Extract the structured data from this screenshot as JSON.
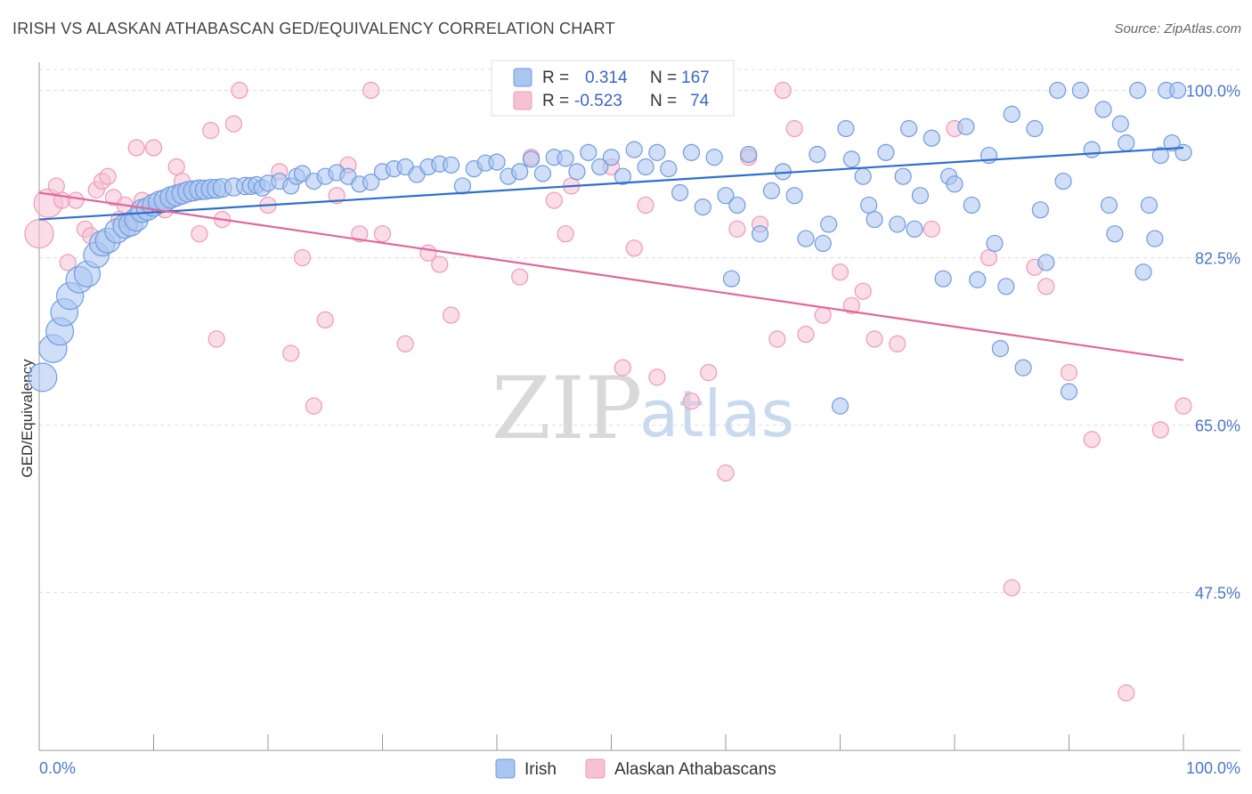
{
  "title": "IRISH VS ALASKAN ATHABASCAN GED/EQUIVALENCY CORRELATION CHART",
  "source": "Source: ZipAtlas.com",
  "watermark": {
    "zip": "ZIP",
    "atlas": "atlas"
  },
  "legend": {
    "series": [
      {
        "r_label": "R =",
        "r_value": "0.314",
        "n_label": "N =",
        "n_value": "167"
      },
      {
        "r_label": "R =",
        "r_value": "-0.523",
        "n_label": "N =",
        "n_value": "74"
      }
    ]
  },
  "bottom_legend": [
    "Irish",
    "Alaskan Athabascans"
  ],
  "colors": {
    "irish_fill": "#a9c5f0",
    "irish_stroke": "#6f9be0",
    "irish_line": "#2f6fcf",
    "alaskan_fill": "#f6c1d3",
    "alaskan_stroke": "#ee99b6",
    "alaskan_line": "#e2679a",
    "tick_label": "#4a78c8",
    "grid": "#dddddd"
  },
  "chart_data": {
    "type": "scatter",
    "title": "IRISH VS ALASKAN ATHABASCAN GED/EQUIVALENCY CORRELATION CHART",
    "xlabel": "",
    "ylabel": "GED/Equivalency",
    "xlim": [
      0,
      100
    ],
    "ylim": [
      31,
      102
    ],
    "x_tick_labels": [
      "0.0%",
      "100.0%"
    ],
    "y_ticks": [
      100.0,
      82.5,
      65.0,
      47.5
    ],
    "y_tick_labels": [
      "100.0%",
      "82.5%",
      "65.0%",
      "47.5%"
    ],
    "grid": "horizontal dashed",
    "legend_placement": "top-center",
    "series": [
      {
        "name": "Irish",
        "r": 0.314,
        "n": 167,
        "trend": [
          [
            0,
            86.5
          ],
          [
            100,
            94.0
          ]
        ],
        "points": [
          [
            0.3,
            70.0
          ],
          [
            1.2,
            73.0
          ],
          [
            1.8,
            74.8
          ],
          [
            2.2,
            76.8
          ],
          [
            2.7,
            78.5
          ],
          [
            3.5,
            80.2
          ],
          [
            4.2,
            80.8
          ],
          [
            5.0,
            82.8
          ],
          [
            5.5,
            84.0
          ],
          [
            6.0,
            84.3
          ],
          [
            6.8,
            85.3
          ],
          [
            7.5,
            85.8
          ],
          [
            8.0,
            86.0
          ],
          [
            8.5,
            86.5
          ],
          [
            9.0,
            87.4
          ],
          [
            9.5,
            87.6
          ],
          [
            10.0,
            88.0
          ],
          [
            10.5,
            88.3
          ],
          [
            11.0,
            88.5
          ],
          [
            11.5,
            88.8
          ],
          [
            12.0,
            89.0
          ],
          [
            12.5,
            89.2
          ],
          [
            13.0,
            89.4
          ],
          [
            13.5,
            89.5
          ],
          [
            14.0,
            89.6
          ],
          [
            14.5,
            89.6
          ],
          [
            15.0,
            89.7
          ],
          [
            15.5,
            89.7
          ],
          [
            16.0,
            89.8
          ],
          [
            17.0,
            89.9
          ],
          [
            18.0,
            90.0
          ],
          [
            18.5,
            90.0
          ],
          [
            19.0,
            90.1
          ],
          [
            19.5,
            89.8
          ],
          [
            20.0,
            90.3
          ],
          [
            21.0,
            90.5
          ],
          [
            22.0,
            90.0
          ],
          [
            22.5,
            91.0
          ],
          [
            23.0,
            91.3
          ],
          [
            24.0,
            90.5
          ],
          [
            25.0,
            91.0
          ],
          [
            26.0,
            91.4
          ],
          [
            27.0,
            91.0
          ],
          [
            28.0,
            90.2
          ],
          [
            29.0,
            90.4
          ],
          [
            30.0,
            91.5
          ],
          [
            31.0,
            91.8
          ],
          [
            32.0,
            92.0
          ],
          [
            33.0,
            91.2
          ],
          [
            34.0,
            92.0
          ],
          [
            35.0,
            92.3
          ],
          [
            36.0,
            92.2
          ],
          [
            37.0,
            90.0
          ],
          [
            38.0,
            91.8
          ],
          [
            39.0,
            92.4
          ],
          [
            40.0,
            92.5
          ],
          [
            41.0,
            91.0
          ],
          [
            42.0,
            91.5
          ],
          [
            43.0,
            92.8
          ],
          [
            44.0,
            91.3
          ],
          [
            45.0,
            93.0
          ],
          [
            46.0,
            92.9
          ],
          [
            47.0,
            91.5
          ],
          [
            48.0,
            93.5
          ],
          [
            49.0,
            92.0
          ],
          [
            50.0,
            93.0
          ],
          [
            51.0,
            91.0
          ],
          [
            52.0,
            93.8
          ],
          [
            53.0,
            92.0
          ],
          [
            54.0,
            93.5
          ],
          [
            55.0,
            91.8
          ],
          [
            56.0,
            89.3
          ],
          [
            57.0,
            93.5
          ],
          [
            58.0,
            87.8
          ],
          [
            59.0,
            93.0
          ],
          [
            60.0,
            89.0
          ],
          [
            60.5,
            80.3
          ],
          [
            61.0,
            88.0
          ],
          [
            62.0,
            93.3
          ],
          [
            63.0,
            85.0
          ],
          [
            64.0,
            89.5
          ],
          [
            65.0,
            91.5
          ],
          [
            66.0,
            89.0
          ],
          [
            67.0,
            84.5
          ],
          [
            68.0,
            93.3
          ],
          [
            68.5,
            84.0
          ],
          [
            69.0,
            86.0
          ],
          [
            70.0,
            67.0
          ],
          [
            70.5,
            96.0
          ],
          [
            71.0,
            92.8
          ],
          [
            72.0,
            91.0
          ],
          [
            72.5,
            88.0
          ],
          [
            73.0,
            86.5
          ],
          [
            74.0,
            93.5
          ],
          [
            75.0,
            86.0
          ],
          [
            75.5,
            91.0
          ],
          [
            76.0,
            96.0
          ],
          [
            76.5,
            85.5
          ],
          [
            77.0,
            89.0
          ],
          [
            78.0,
            95.0
          ],
          [
            79.0,
            80.3
          ],
          [
            79.5,
            91.0
          ],
          [
            80.0,
            90.2
          ],
          [
            81.0,
            96.2
          ],
          [
            81.5,
            88.0
          ],
          [
            82.0,
            80.2
          ],
          [
            83.0,
            93.2
          ],
          [
            83.5,
            84.0
          ],
          [
            84.0,
            73.0
          ],
          [
            84.5,
            79.5
          ],
          [
            85.0,
            97.5
          ],
          [
            86.0,
            71.0
          ],
          [
            87.0,
            96.0
          ],
          [
            87.5,
            87.5
          ],
          [
            88.0,
            82.0
          ],
          [
            89.0,
            100.0
          ],
          [
            89.5,
            90.5
          ],
          [
            90.0,
            68.5
          ],
          [
            91.0,
            100.0
          ],
          [
            92.0,
            93.8
          ],
          [
            93.0,
            98.0
          ],
          [
            93.5,
            88.0
          ],
          [
            94.0,
            85.0
          ],
          [
            94.5,
            96.5
          ],
          [
            95.0,
            94.5
          ],
          [
            96.0,
            100.0
          ],
          [
            96.5,
            81.0
          ],
          [
            97.0,
            88.0
          ],
          [
            97.5,
            84.5
          ],
          [
            98.0,
            93.2
          ],
          [
            98.5,
            100.0
          ],
          [
            99.0,
            94.5
          ],
          [
            99.5,
            100.0
          ],
          [
            100.0,
            93.5
          ]
        ]
      },
      {
        "name": "Alaskan Athabascans",
        "r": -0.523,
        "n": 74,
        "trend": [
          [
            0,
            89.3
          ],
          [
            100,
            71.8
          ]
        ],
        "points": [
          [
            0.0,
            85.0
          ],
          [
            0.8,
            88.2
          ],
          [
            1.5,
            90.0
          ],
          [
            2.0,
            88.5
          ],
          [
            2.5,
            82.0
          ],
          [
            3.2,
            88.5
          ],
          [
            4.0,
            85.5
          ],
          [
            4.5,
            84.8
          ],
          [
            5.0,
            89.6
          ],
          [
            5.5,
            90.5
          ],
          [
            6.0,
            91.0
          ],
          [
            6.5,
            88.8
          ],
          [
            7.0,
            86.5
          ],
          [
            7.5,
            88.0
          ],
          [
            8.0,
            86.2
          ],
          [
            8.5,
            94.0
          ],
          [
            9.0,
            88.5
          ],
          [
            10.0,
            94.0
          ],
          [
            10.5,
            88.0
          ],
          [
            11.0,
            87.5
          ],
          [
            12.0,
            92.0
          ],
          [
            12.5,
            90.5
          ],
          [
            14.0,
            85.0
          ],
          [
            15.0,
            95.8
          ],
          [
            15.5,
            74.0
          ],
          [
            16.0,
            86.5
          ],
          [
            17.0,
            96.5
          ],
          [
            17.5,
            100.0
          ],
          [
            20.0,
            88.0
          ],
          [
            21.0,
            91.5
          ],
          [
            22.0,
            72.5
          ],
          [
            23.0,
            82.5
          ],
          [
            24.0,
            67.0
          ],
          [
            25.0,
            76.0
          ],
          [
            26.0,
            89.0
          ],
          [
            27.0,
            92.2
          ],
          [
            28.0,
            85.0
          ],
          [
            29.0,
            100.0
          ],
          [
            30.0,
            85.0
          ],
          [
            32.0,
            73.5
          ],
          [
            34.0,
            83.0
          ],
          [
            35.0,
            81.8
          ],
          [
            36.0,
            76.5
          ],
          [
            42.0,
            80.5
          ],
          [
            43.0,
            93.0
          ],
          [
            45.0,
            88.5
          ],
          [
            46.0,
            85.0
          ],
          [
            46.5,
            90.0
          ],
          [
            50.0,
            92.0
          ],
          [
            51.0,
            71.0
          ],
          [
            52.0,
            83.5
          ],
          [
            53.0,
            88.0
          ],
          [
            54.0,
            70.0
          ],
          [
            57.0,
            67.5
          ],
          [
            58.5,
            70.5
          ],
          [
            60.0,
            60.0
          ],
          [
            61.0,
            85.5
          ],
          [
            62.0,
            93.0
          ],
          [
            63.0,
            86.0
          ],
          [
            64.5,
            74.0
          ],
          [
            65.0,
            100.0
          ],
          [
            66.0,
            96.0
          ],
          [
            67.0,
            74.5
          ],
          [
            68.5,
            76.5
          ],
          [
            70.0,
            81.0
          ],
          [
            71.0,
            77.5
          ],
          [
            72.0,
            79.0
          ],
          [
            73.0,
            74.0
          ],
          [
            75.0,
            73.5
          ],
          [
            78.0,
            85.5
          ],
          [
            80.0,
            96.0
          ],
          [
            83.0,
            82.5
          ],
          [
            85.0,
            48.0
          ],
          [
            87.0,
            81.5
          ],
          [
            88.0,
            79.5
          ],
          [
            90.0,
            70.5
          ],
          [
            92.0,
            63.5
          ],
          [
            95.0,
            37.0
          ],
          [
            98.0,
            64.5
          ],
          [
            100.0,
            67.0
          ]
        ]
      }
    ]
  }
}
